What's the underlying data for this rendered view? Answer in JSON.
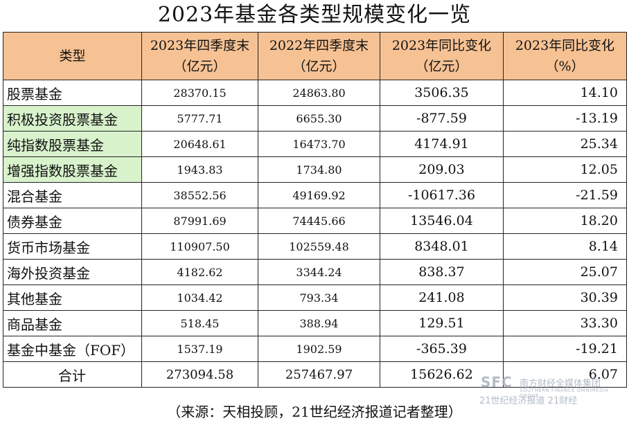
{
  "title": "2023年基金各类型规模变化一览",
  "headers": [
    "类型",
    "2023年四季度末（亿元）",
    "2022年四季度末（亿元）",
    "2023年同比变化（亿元）",
    "2023年同比变化（%）"
  ],
  "rows": [
    {
      "name": "股票基金",
      "highlight": false,
      "v2023": "28370.15",
      "v2022": "24863.80",
      "diff": "3506.35",
      "pct": "14.10"
    },
    {
      "name": "积极投资股票基金",
      "highlight": true,
      "v2023": "5777.71",
      "v2022": "6655.30",
      "diff": "-877.59",
      "pct": "-13.19"
    },
    {
      "name": "纯指数股票基金",
      "highlight": true,
      "v2023": "20648.61",
      "v2022": "16473.70",
      "diff": "4174.91",
      "pct": "25.34"
    },
    {
      "name": "增强指数股票基金",
      "highlight": true,
      "v2023": "1943.83",
      "v2022": "1734.80",
      "diff": "209.03",
      "pct": "12.05"
    },
    {
      "name": "混合基金",
      "highlight": false,
      "v2023": "38552.56",
      "v2022": "49169.92",
      "diff": "-10617.36",
      "pct": "-21.59"
    },
    {
      "name": "债券基金",
      "highlight": false,
      "v2023": "87991.69",
      "v2022": "74445.66",
      "diff": "13546.04",
      "pct": "18.20"
    },
    {
      "name": "货币市场基金",
      "highlight": false,
      "v2023": "110907.50",
      "v2022": "102559.48",
      "diff": "8348.01",
      "pct": "8.14"
    },
    {
      "name": "海外投资基金",
      "highlight": false,
      "v2023": "4182.62",
      "v2022": "3344.24",
      "diff": "838.37",
      "pct": "25.07"
    },
    {
      "name": "其他基金",
      "highlight": false,
      "v2023": "1034.42",
      "v2022": "793.34",
      "diff": "241.08",
      "pct": "30.39"
    },
    {
      "name": "商品基金",
      "highlight": false,
      "v2023": "518.45",
      "v2022": "388.94",
      "diff": "129.51",
      "pct": "33.30"
    },
    {
      "name": "基金中基金（FOF）",
      "highlight": false,
      "v2023": "1537.19",
      "v2022": "1902.59",
      "diff": "-365.39",
      "pct": "-19.21"
    }
  ],
  "total": {
    "name": "合计",
    "v2023": "273094.58",
    "v2022": "257467.97",
    "diff": "15626.62",
    "pct": "6.07"
  },
  "source": "（来源：天相投顾，21世纪经济报道记者整理）",
  "watermark": {
    "logo": "SFC",
    "line1": "南方财经全媒体集团",
    "line2": "SOUTHERN FINANCE OMNIMEDIA GROUP",
    "line3": "21世纪经济报道 21财经"
  },
  "colors": {
    "header_bg": "#f6c294",
    "highlight_bg": "#d8f2cc",
    "border": "#222222"
  }
}
